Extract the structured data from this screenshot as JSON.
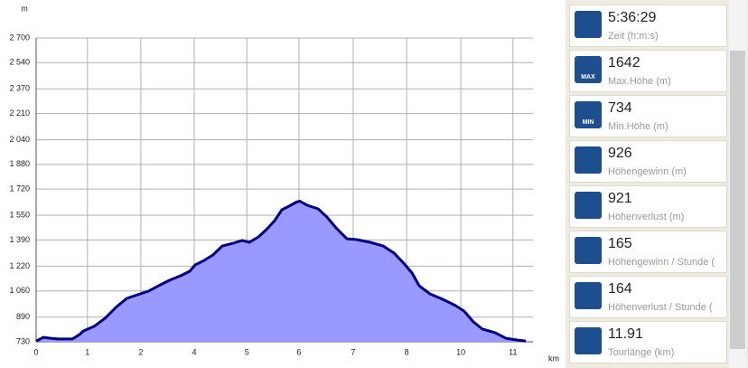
{
  "chart_data": {
    "type": "area",
    "y_unit": "m",
    "x_unit": "km",
    "color": "#9999ff",
    "line_color": "#000080",
    "x": [
      0,
      0.17,
      0.35,
      0.52,
      0.87,
      1.04,
      1.13,
      1.39,
      1.65,
      1.91,
      2.17,
      2.43,
      2.69,
      2.94,
      3.2,
      3.46,
      3.68,
      3.81,
      4.03,
      4.24,
      4.46,
      4.72,
      4.94,
      5.11,
      5.33,
      5.54,
      5.72,
      5.89,
      6.06,
      6.24,
      6.32,
      6.5,
      6.76,
      6.97,
      7.19,
      7.45,
      7.67,
      8.01,
      8.32,
      8.58,
      8.79,
      9.01,
      9.18,
      9.44,
      9.74,
      10.05,
      10.26,
      10.48,
      10.7,
      11.0,
      11.26,
      11.52,
      11.74
    ],
    "values": [
      734,
      759,
      753,
      748,
      748,
      777,
      800,
      830,
      882,
      953,
      1011,
      1035,
      1058,
      1094,
      1129,
      1158,
      1187,
      1228,
      1258,
      1293,
      1351,
      1369,
      1387,
      1375,
      1410,
      1463,
      1516,
      1586,
      1609,
      1636,
      1642,
      1615,
      1592,
      1539,
      1469,
      1398,
      1393,
      1375,
      1351,
      1305,
      1246,
      1176,
      1094,
      1041,
      1006,
      965,
      929,
      859,
      812,
      789,
      753,
      742,
      734
    ],
    "xlim": [
      0,
      11.91
    ],
    "xticks": [
      {
        "value": 0,
        "label": "0"
      },
      {
        "value": 1.23,
        "label": "1"
      },
      {
        "value": 2.51,
        "label": "2"
      },
      {
        "value": 3.79,
        "label": "4"
      },
      {
        "value": 5.05,
        "label": "5"
      },
      {
        "value": 6.3,
        "label": "6"
      },
      {
        "value": 7.6,
        "label": "7"
      },
      {
        "value": 8.88,
        "label": "8"
      },
      {
        "value": 10.18,
        "label": "10"
      },
      {
        "value": 11.43,
        "label": "11"
      }
    ],
    "ylim": [
      730,
      2700
    ],
    "yticks": [
      730,
      890,
      {
        "value": 1060,
        "label": "1 060"
      },
      {
        "value": 1220,
        "label": "1 220"
      },
      {
        "value": 1390,
        "label": "1 390"
      },
      {
        "value": 1550,
        "label": "1 550"
      },
      {
        "value": 1720,
        "label": "1 720"
      },
      {
        "value": 1880,
        "label": "1 880"
      },
      {
        "value": 2040,
        "label": "2 040"
      },
      {
        "value": 2210,
        "label": "2 210"
      },
      {
        "value": 2370,
        "label": "2 370"
      },
      {
        "value": 2540,
        "label": "2 540"
      },
      {
        "value": 2700,
        "label": "2 700"
      }
    ],
    "grid": true
  },
  "panel": {
    "items": [
      {
        "value": "5:36:29",
        "label": "Zeit (h:m:s)"
      },
      {
        "value": "1642",
        "label": "Max.Höhe (m)",
        "icon_label": "MAX"
      },
      {
        "value": "734",
        "label": "Min.Höhe (m)",
        "icon_label": "MIN"
      },
      {
        "value": "926",
        "label": "Höhengewinn (m)"
      },
      {
        "value": "921",
        "label": "Höhenverlust (m)"
      },
      {
        "value": "165",
        "label": "Höhengewinn  /  Stunde ("
      },
      {
        "value": "164",
        "label": "Höhenverlust / Stunde ("
      },
      {
        "value": "11.91",
        "label": "Tourlänge (km)"
      }
    ]
  }
}
